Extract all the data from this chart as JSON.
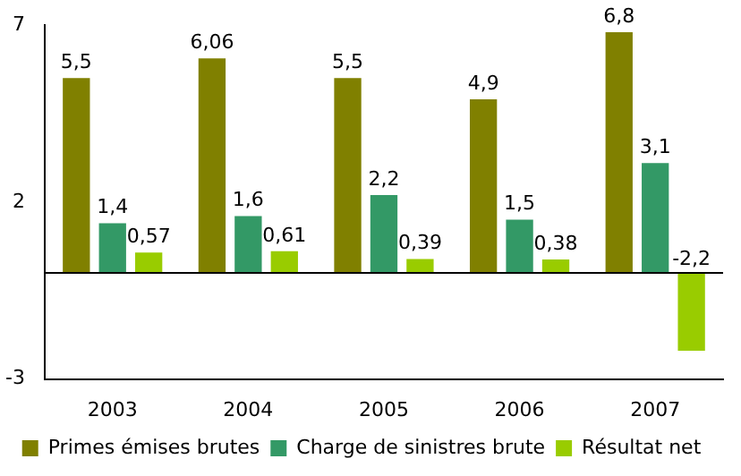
{
  "chart_data": {
    "type": "bar",
    "categories": [
      "2003",
      "2004",
      "2005",
      "2006",
      "2007"
    ],
    "series": [
      {
        "name": "Primes émises brutes",
        "color": "#808000",
        "values": [
          5.5,
          6.06,
          5.5,
          4.9,
          6.8
        ],
        "value_labels": [
          "5,5",
          "6,06",
          "5,5",
          "4,9",
          "6,8"
        ]
      },
      {
        "name": "Charge de sinistres brute",
        "color": "#339966",
        "values": [
          1.4,
          1.6,
          2.2,
          1.5,
          3.1
        ],
        "value_labels": [
          "1,4",
          "1,6",
          "2,2",
          "1,5",
          "3,1"
        ]
      },
      {
        "name": "Résultat net",
        "color": "#99cc00",
        "values": [
          0.57,
          0.61,
          0.39,
          0.38,
          -2.2
        ],
        "value_labels": [
          "0,57",
          "0,61",
          "0,39",
          "0,38",
          "-2,2"
        ]
      }
    ],
    "ylim": [
      -3,
      7
    ],
    "yticks": [
      -3,
      2,
      7
    ],
    "grid": false,
    "legend": "bottom"
  }
}
